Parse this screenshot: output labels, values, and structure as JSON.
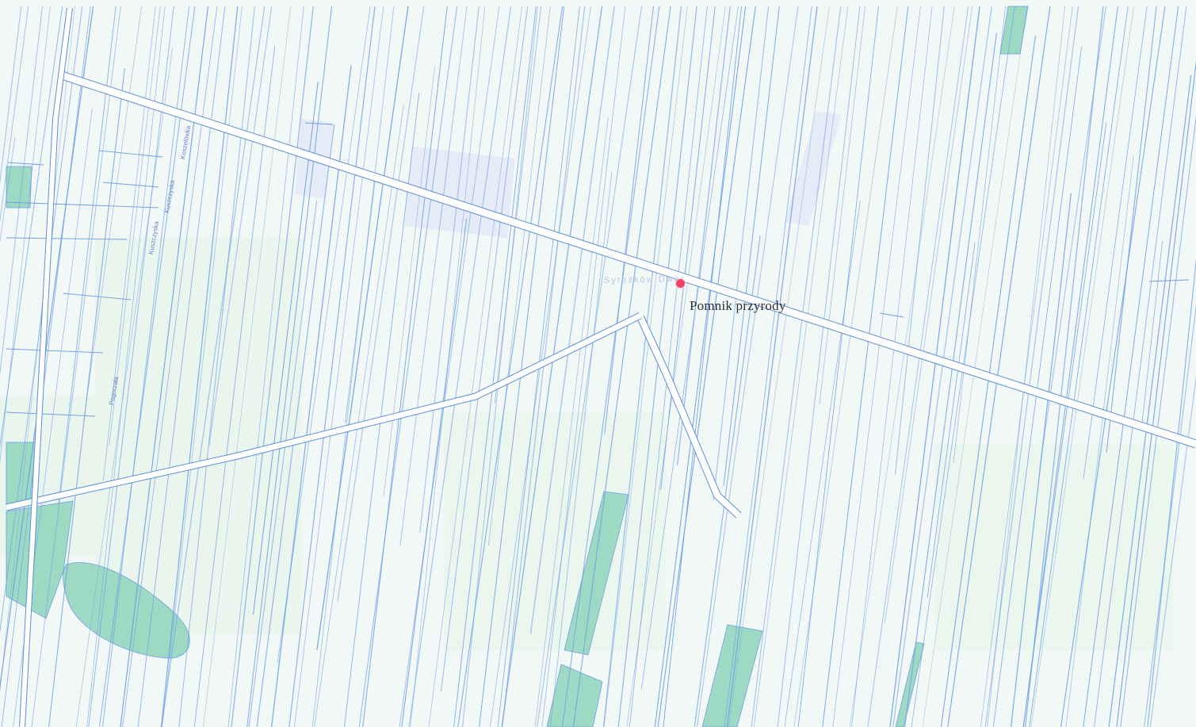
{
  "map": {
    "poi_label": "Pomnik przyrody",
    "road_name": "Syreżków Dwór",
    "street_labels": [
      "Koszelówka",
      "Kuszczyska",
      "Kuszczyska",
      "Pogorzała"
    ],
    "colors": {
      "background": "#f7fbfb",
      "parcel_line": "#6f9ee6",
      "road_fill": "#ffffff",
      "road_edge": "#5e8ed8",
      "woodland": "#9ed9c4",
      "meadow": "#e6f3ea",
      "built_up": "#dfe6f8",
      "marker": "#ee4566"
    },
    "icons": [
      "point-marker-icon"
    ]
  }
}
